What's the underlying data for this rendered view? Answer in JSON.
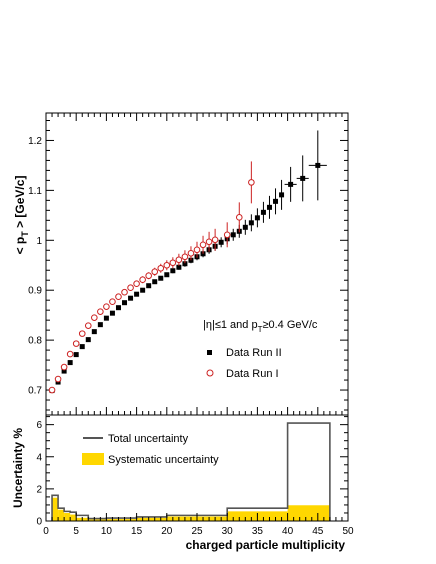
{
  "chart_data": [
    {
      "type": "scatter",
      "ylabel_main": "< p",
      "ylabel_sub": "T",
      "ylabel_tail": " >  [GeV/c]",
      "xlim": [
        0,
        50
      ],
      "ylim": [
        0.65,
        1.255
      ],
      "yticks": [
        "0.7",
        "0.8",
        "0.9",
        "1",
        "1.1",
        "1.2"
      ],
      "annotation": {
        "prefix": "|η|≤1 and p",
        "sub": "T",
        "suffix": "≥0.4 GeV/c"
      },
      "legend": {
        "placement": "right",
        "run2_label": "Data Run II",
        "run1_label": "Data Run I"
      },
      "series": [
        {
          "name": "Data Run II",
          "marker": "filled-square",
          "color": "#000000",
          "points": [
            {
              "x": 1,
              "y": 0.699,
              "ey": 0.002
            },
            {
              "x": 2,
              "y": 0.716,
              "ey": 0.002
            },
            {
              "x": 3,
              "y": 0.738,
              "ey": 0.002
            },
            {
              "x": 4,
              "y": 0.755,
              "ey": 0.002
            },
            {
              "x": 5,
              "y": 0.771,
              "ey": 0.002
            },
            {
              "x": 6,
              "y": 0.787,
              "ey": 0.002
            },
            {
              "x": 7,
              "y": 0.801,
              "ey": 0.002
            },
            {
              "x": 8,
              "y": 0.817,
              "ey": 0.002
            },
            {
              "x": 9,
              "y": 0.831,
              "ey": 0.002
            },
            {
              "x": 10,
              "y": 0.844,
              "ey": 0.002
            },
            {
              "x": 11,
              "y": 0.854,
              "ey": 0.003
            },
            {
              "x": 12,
              "y": 0.865,
              "ey": 0.003
            },
            {
              "x": 13,
              "y": 0.875,
              "ey": 0.003
            },
            {
              "x": 14,
              "y": 0.884,
              "ey": 0.003
            },
            {
              "x": 15,
              "y": 0.892,
              "ey": 0.003
            },
            {
              "x": 16,
              "y": 0.9,
              "ey": 0.003
            },
            {
              "x": 17,
              "y": 0.909,
              "ey": 0.003
            },
            {
              "x": 18,
              "y": 0.917,
              "ey": 0.004
            },
            {
              "x": 19,
              "y": 0.924,
              "ey": 0.004
            },
            {
              "x": 20,
              "y": 0.931,
              "ey": 0.004
            },
            {
              "x": 21,
              "y": 0.939,
              "ey": 0.005
            },
            {
              "x": 22,
              "y": 0.946,
              "ey": 0.005
            },
            {
              "x": 23,
              "y": 0.953,
              "ey": 0.006
            },
            {
              "x": 24,
              "y": 0.96,
              "ey": 0.006
            },
            {
              "x": 25,
              "y": 0.967,
              "ey": 0.007
            },
            {
              "x": 26,
              "y": 0.973,
              "ey": 0.007
            },
            {
              "x": 27,
              "y": 0.981,
              "ey": 0.008
            },
            {
              "x": 28,
              "y": 0.988,
              "ey": 0.009
            },
            {
              "x": 29,
              "y": 0.996,
              "ey": 0.01
            },
            {
              "x": 30,
              "y": 1.003,
              "ey": 0.011
            },
            {
              "x": 31,
              "y": 1.011,
              "ey": 0.012
            },
            {
              "x": 32,
              "y": 1.018,
              "ey": 0.013
            },
            {
              "x": 33,
              "y": 1.026,
              "ey": 0.015
            },
            {
              "x": 34,
              "y": 1.035,
              "ey": 0.017
            },
            {
              "x": 35,
              "y": 1.045,
              "ey": 0.019
            },
            {
              "x": 36,
              "y": 1.056,
              "ey": 0.021
            },
            {
              "x": 37,
              "y": 1.066,
              "ey": 0.023
            },
            {
              "x": 38,
              "y": 1.078,
              "ey": 0.026
            },
            {
              "x": 39,
              "y": 1.091,
              "ey": 0.03
            },
            {
              "x": 40.5,
              "y": 1.112,
              "ex": 1.0,
              "ey": 0.035
            },
            {
              "x": 42.5,
              "y": 1.124,
              "ex": 1.0,
              "ey": 0.046
            },
            {
              "x": 45,
              "y": 1.15,
              "ex": 1.5,
              "ey": 0.07
            }
          ]
        },
        {
          "name": "Data Run I",
          "marker": "open-circle",
          "color": "#cc2222",
          "points": [
            {
              "x": 1,
              "y": 0.7,
              "ey": 0.002
            },
            {
              "x": 2,
              "y": 0.722,
              "ey": 0.003
            },
            {
              "x": 3,
              "y": 0.746,
              "ey": 0.003
            },
            {
              "x": 4,
              "y": 0.772,
              "ey": 0.003
            },
            {
              "x": 5,
              "y": 0.793,
              "ey": 0.003
            },
            {
              "x": 6,
              "y": 0.813,
              "ey": 0.003
            },
            {
              "x": 7,
              "y": 0.829,
              "ey": 0.004
            },
            {
              "x": 8,
              "y": 0.845,
              "ey": 0.004
            },
            {
              "x": 9,
              "y": 0.857,
              "ey": 0.004
            },
            {
              "x": 10,
              "y": 0.867,
              "ey": 0.004
            },
            {
              "x": 11,
              "y": 0.877,
              "ey": 0.005
            },
            {
              "x": 12,
              "y": 0.887,
              "ey": 0.005
            },
            {
              "x": 13,
              "y": 0.896,
              "ey": 0.005
            },
            {
              "x": 14,
              "y": 0.905,
              "ey": 0.006
            },
            {
              "x": 15,
              "y": 0.913,
              "ey": 0.006
            },
            {
              "x": 16,
              "y": 0.921,
              "ey": 0.007
            },
            {
              "x": 17,
              "y": 0.929,
              "ey": 0.007
            },
            {
              "x": 18,
              "y": 0.937,
              "ey": 0.008
            },
            {
              "x": 19,
              "y": 0.944,
              "ey": 0.009
            },
            {
              "x": 20,
              "y": 0.95,
              "ey": 0.01
            },
            {
              "x": 21,
              "y": 0.955,
              "ey": 0.011
            },
            {
              "x": 22,
              "y": 0.961,
              "ey": 0.012
            },
            {
              "x": 23,
              "y": 0.967,
              "ey": 0.013
            },
            {
              "x": 24,
              "y": 0.974,
              "ey": 0.014
            },
            {
              "x": 25,
              "y": 0.981,
              "ey": 0.016
            },
            {
              "x": 26,
              "y": 0.991,
              "ey": 0.018
            },
            {
              "x": 27,
              "y": 0.997,
              "ey": 0.02
            },
            {
              "x": 28,
              "y": 1.001,
              "ey": 0.022
            },
            {
              "x": 30,
              "y": 1.011,
              "ey": 0.025
            },
            {
              "x": 32,
              "y": 1.046,
              "ey": 0.03
            },
            {
              "x": 34,
              "y": 1.116,
              "ey": 0.042
            }
          ]
        }
      ]
    },
    {
      "type": "bar",
      "style": "step-histogram",
      "ylabel": "Uncertainty %",
      "xlabel": "charged particle multiplicity",
      "xlim": [
        0,
        50
      ],
      "ylim": [
        0,
        6.6
      ],
      "xticks": [
        "0",
        "5",
        "10",
        "15",
        "20",
        "25",
        "30",
        "35",
        "40",
        "45",
        "50"
      ],
      "yticks": [
        "0",
        "2",
        "4",
        "6"
      ],
      "bin_edges": [
        1,
        2,
        3,
        4,
        5,
        7,
        10,
        15,
        20,
        30,
        40,
        47
      ],
      "series": [
        {
          "name": "Total uncertainty",
          "values": [
            1.6,
            0.8,
            0.6,
            0.55,
            0.35,
            0.15,
            0.18,
            0.25,
            0.35,
            0.8,
            6.1
          ],
          "color": "#555555"
        },
        {
          "name": "Systematic uncertainty",
          "values": [
            1.45,
            0.7,
            0.5,
            0.4,
            0.2,
            0.1,
            0.12,
            0.2,
            0.28,
            0.6,
            0.98
          ],
          "color": "#ffd700"
        }
      ],
      "legend_total": "Total uncertainty",
      "legend_syst": "Systematic uncertainty"
    }
  ]
}
